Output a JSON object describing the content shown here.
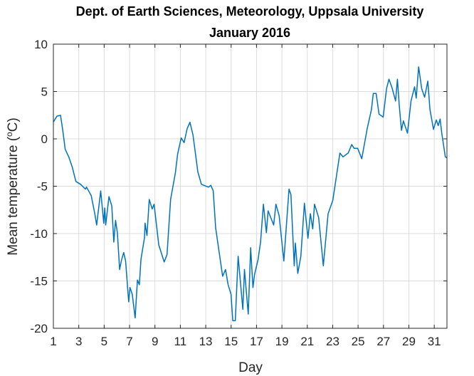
{
  "chart_data": {
    "type": "line",
    "title": [
      "Dept. of Earth Sciences, Meteorology, Uppsala University",
      "January 2016"
    ],
    "xlabel": "Day",
    "ylabel_parts": [
      "Mean temperature (",
      "o",
      "C)"
    ],
    "xlim": [
      1,
      32
    ],
    "ylim": [
      -20,
      10
    ],
    "xticks": [
      1,
      3,
      5,
      7,
      9,
      11,
      13,
      15,
      17,
      19,
      21,
      23,
      25,
      27,
      29,
      31
    ],
    "yticks": [
      -20,
      -15,
      -10,
      -5,
      0,
      5,
      10
    ],
    "grid": true,
    "line_color": "#0072bd",
    "series": [
      {
        "x": [
          1.0,
          1.1,
          1.28,
          1.56,
          1.74,
          1.93,
          2.21,
          2.49,
          2.77,
          3.14,
          3.52,
          3.61,
          3.98,
          4.26,
          4.41,
          4.73,
          4.97,
          5.05,
          5.12,
          5.38,
          5.6,
          5.76,
          5.9,
          6.04,
          6.22,
          6.35,
          6.54,
          6.69,
          6.93,
          7.03,
          7.21,
          7.44,
          7.62,
          7.77,
          7.9,
          8.18,
          8.22,
          8.37,
          8.55,
          8.78,
          8.93,
          9.3,
          9.73,
          9.95,
          10.23,
          10.61,
          10.79,
          11.07,
          11.3,
          11.54,
          11.76,
          12.0,
          12.38,
          12.66,
          13.22,
          13.4,
          13.59,
          13.78,
          14.05,
          14.33,
          14.56,
          14.76,
          14.99,
          15.13,
          15.33,
          15.55,
          15.92,
          16.05,
          16.35,
          16.54,
          16.72,
          16.85,
          17.13,
          17.32,
          17.54,
          17.78,
          17.91,
          18.35,
          18.53,
          18.78,
          19.15,
          19.56,
          19.71,
          19.97,
          20.06,
          20.25,
          20.49,
          20.77,
          21.05,
          21.24,
          21.43,
          21.57,
          21.89,
          22.26,
          22.64,
          23.01,
          23.57,
          23.81,
          24.22,
          24.5,
          24.69,
          24.97,
          25.29,
          25.72,
          26.05,
          26.2,
          26.42,
          26.65,
          26.98,
          27.24,
          27.43,
          27.67,
          27.95,
          28.1,
          28.24,
          28.42,
          28.57,
          28.89,
          29.17,
          29.45,
          29.58,
          29.77,
          30.01,
          30.24,
          30.49,
          30.66,
          30.94,
          31.16,
          31.31,
          31.46,
          31.59,
          31.87,
          32.0
        ],
        "y": [
          1.8,
          2.0,
          2.4,
          2.5,
          0.9,
          -1.1,
          -1.9,
          -3.0,
          -4.5,
          -4.8,
          -5.3,
          -5.1,
          -6.0,
          -7.9,
          -9.1,
          -5.5,
          -8.9,
          -7.3,
          -9.1,
          -6.1,
          -7.1,
          -10.9,
          -8.6,
          -9.9,
          -13.8,
          -12.9,
          -12.0,
          -12.9,
          -17.2,
          -15.7,
          -16.4,
          -18.9,
          -14.9,
          -15.4,
          -12.7,
          -10.4,
          -8.9,
          -10.2,
          -6.4,
          -7.4,
          -6.9,
          -11.2,
          -13.0,
          -12.2,
          -6.4,
          -3.6,
          -1.6,
          0.1,
          -0.4,
          1.1,
          1.75,
          0.4,
          -3.5,
          -4.8,
          -5.1,
          -4.9,
          -5.5,
          -9.4,
          -11.9,
          -14.5,
          -13.8,
          -15.4,
          -16.4,
          -19.2,
          -19.2,
          -12.4,
          -18.0,
          -13.8,
          -18.5,
          -11.5,
          -15.7,
          -14.3,
          -12.7,
          -10.9,
          -6.9,
          -9.9,
          -7.6,
          -9.1,
          -6.9,
          -8.1,
          -12.9,
          -5.3,
          -5.9,
          -13.4,
          -11.0,
          -14.2,
          -12.4,
          -6.8,
          -10.5,
          -7.9,
          -9.5,
          -6.9,
          -8.3,
          -13.4,
          -7.9,
          -6.5,
          -1.5,
          -1.9,
          -1.5,
          -0.6,
          -1.0,
          -1.0,
          -2.1,
          1.1,
          3.1,
          4.8,
          4.8,
          2.6,
          2.3,
          5.3,
          6.3,
          5.4,
          4.0,
          6.3,
          3.6,
          0.9,
          1.9,
          0.6,
          4.0,
          5.5,
          4.3,
          7.6,
          5.3,
          4.4,
          6.1,
          3.1,
          1.0,
          2.0,
          1.4,
          2.1,
          0.6,
          -1.9,
          -2.0
        ]
      }
    ]
  }
}
